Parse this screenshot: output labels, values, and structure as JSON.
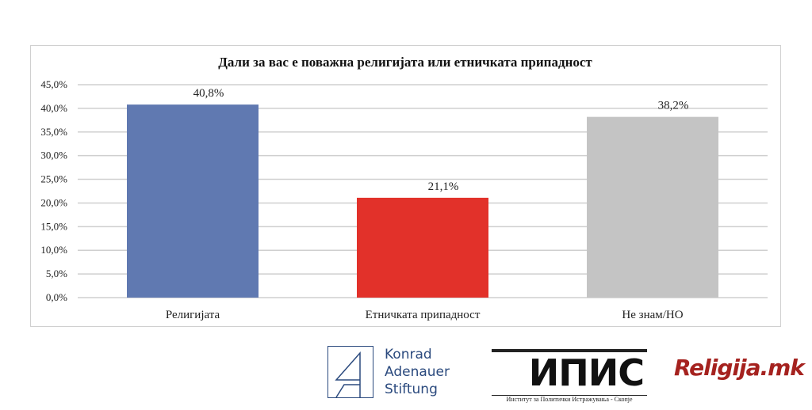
{
  "chart_data": {
    "type": "bar",
    "title": "Дали за вас е поважна религијата или етничката припадност",
    "categories": [
      "Религијата",
      "Етничката припадност",
      "Не знам/НО"
    ],
    "values": [
      40.8,
      21.1,
      38.2
    ],
    "data_labels": [
      "40,8%",
      "21,1%",
      "38,2%"
    ],
    "colors": [
      "#6079b1",
      "#e2312a",
      "#c4c4c4"
    ],
    "ylim": [
      0,
      45
    ],
    "yticks": [
      "0,0%",
      "5,0%",
      "10,0%",
      "15,0%",
      "20,0%",
      "25,0%",
      "30,0%",
      "35,0%",
      "40,0%",
      "45,0%"
    ],
    "grid": true,
    "xlabel": "",
    "ylabel": ""
  },
  "logos": {
    "kas": [
      "Konrad",
      "Adenauer",
      "Stiftung"
    ],
    "ipis": "ИПИС",
    "ipis_sub": "Институт за Политички Истражувања - Скопје",
    "religija": "Religija.mk"
  }
}
